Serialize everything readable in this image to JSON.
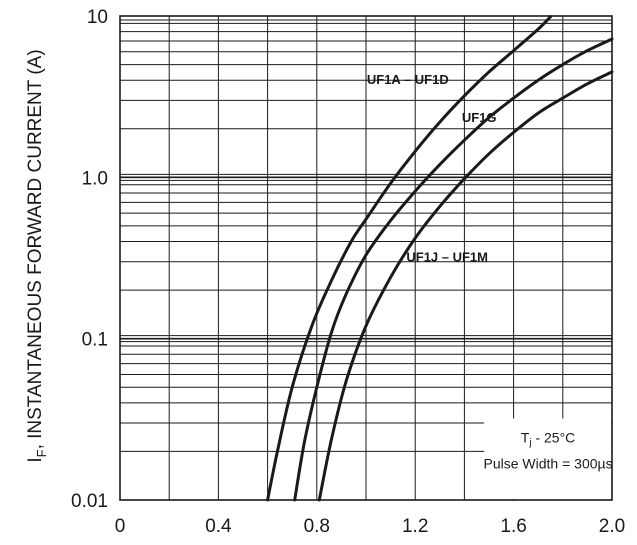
{
  "chart_data": {
    "type": "line",
    "title": "",
    "xlabel": "",
    "ylabel": {
      "prefix": "I",
      "subscript": "F",
      "text": ", INSTANTANEOUS FORWARD CURRENT (A)"
    },
    "x_scale": "linear",
    "y_scale": "log",
    "xlim": [
      0,
      2.0
    ],
    "ylim": [
      0.01,
      10
    ],
    "x_ticks": [
      "0",
      "0.4",
      "0.8",
      "1.2",
      "1.6",
      "2.0"
    ],
    "y_ticks": [
      "10",
      "1.0",
      "0.1",
      "0.01"
    ],
    "grid": true,
    "grid_color": "#1a1a1a",
    "line_color": "#1a1a1a",
    "series": [
      {
        "name": "UF1A – UF1D",
        "x": [
          0.6,
          0.64,
          0.7,
          0.78,
          0.86,
          0.94,
          1.0,
          1.1,
          1.2,
          1.3,
          1.4,
          1.5,
          1.6,
          1.7,
          1.75
        ],
        "y": [
          0.01,
          0.02,
          0.05,
          0.12,
          0.23,
          0.4,
          0.55,
          0.92,
          1.45,
          2.2,
          3.2,
          4.5,
          6.1,
          8.3,
          9.9
        ]
      },
      {
        "name": "UF1G",
        "x": [
          0.71,
          0.75,
          0.8,
          0.86,
          0.92,
          1.0,
          1.1,
          1.2,
          1.3,
          1.4,
          1.5,
          1.6,
          1.7,
          1.8,
          1.9,
          2.0
        ],
        "y": [
          0.01,
          0.023,
          0.05,
          0.11,
          0.19,
          0.33,
          0.54,
          0.82,
          1.2,
          1.7,
          2.35,
          3.1,
          4.0,
          5.0,
          6.1,
          7.2
        ]
      },
      {
        "name": "UF1J – UF1M",
        "x": [
          0.81,
          0.86,
          0.92,
          1.0,
          1.1,
          1.2,
          1.3,
          1.4,
          1.5,
          1.6,
          1.7,
          1.8,
          1.9,
          2.0
        ],
        "y": [
          0.01,
          0.024,
          0.055,
          0.12,
          0.24,
          0.42,
          0.66,
          0.98,
          1.4,
          1.9,
          2.5,
          3.1,
          3.8,
          4.5
        ]
      }
    ],
    "series_labels": [
      {
        "text": "UF1A – UF1D",
        "x": 1.17,
        "y": 3.8
      },
      {
        "text": "UF1G",
        "x": 1.46,
        "y": 2.2
      },
      {
        "text": "UF1J – UF1M",
        "x": 1.33,
        "y": 0.3
      }
    ],
    "annotation": {
      "line1_prefix": "T",
      "line1_sub": "j",
      "line1_rest": " - 25°C",
      "line2": "Pulse Width = 300µs"
    }
  }
}
